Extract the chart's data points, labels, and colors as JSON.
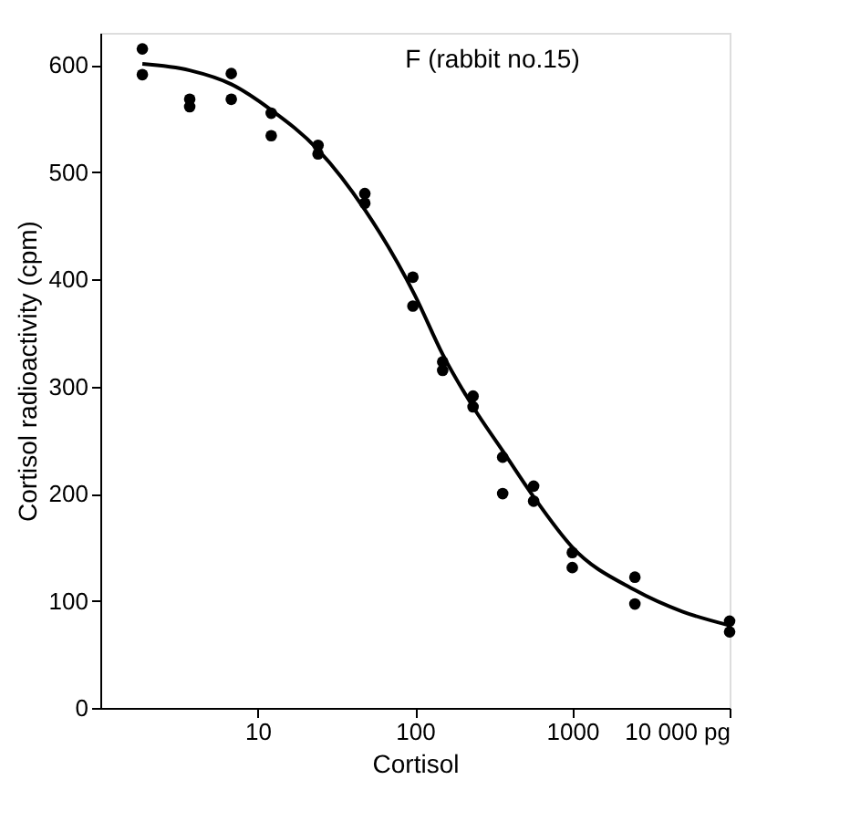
{
  "chart_data": {
    "type": "scatter",
    "xlabel": "Cortisol",
    "ylabel": "Cortisol radioactivity (cpm)",
    "annotations": [
      "F (rabbit no.15)"
    ],
    "log": "x",
    "xlim": [
      1,
      10000
    ],
    "ylim": [
      0,
      630
    ],
    "xticks": [
      10,
      100,
      1000,
      {
        "value": 10000,
        "label": "10 000 pg"
      }
    ],
    "yticks": [
      0,
      100,
      200,
      300,
      400,
      500,
      600
    ],
    "grid": false,
    "series": [
      {
        "color": "#000000",
        "marker": "circle",
        "x": [
          1.85,
          1.85,
          3.7,
          3.7,
          6.8,
          6.8,
          12.2,
          12.2,
          24.2,
          24.2,
          48,
          48,
          97,
          97,
          150,
          150,
          234,
          234,
          361,
          361,
          568,
          568,
          1000,
          1000,
          2500,
          2500,
          10000,
          10000
        ],
        "values": [
          615,
          591,
          568,
          561,
          592,
          568,
          555,
          534,
          525,
          517,
          480,
          471,
          402,
          375,
          323,
          315,
          291,
          281,
          234,
          200,
          207,
          193,
          145,
          131,
          122,
          97,
          81,
          71
        ]
      },
      {
        "type": "line",
        "color": "#000000",
        "marker": "none",
        "line_style": "solid",
        "x": [
          1.85,
          3.7,
          6.8,
          12.2,
          24.2,
          48,
          100,
          150,
          234,
          361,
          568,
          1000,
          2500,
          5000,
          10000
        ],
        "values": [
          601,
          595,
          582,
          558,
          521,
          465,
          385,
          330,
          281,
          240,
          197,
          150,
          110,
          90,
          77
        ]
      }
    ]
  }
}
